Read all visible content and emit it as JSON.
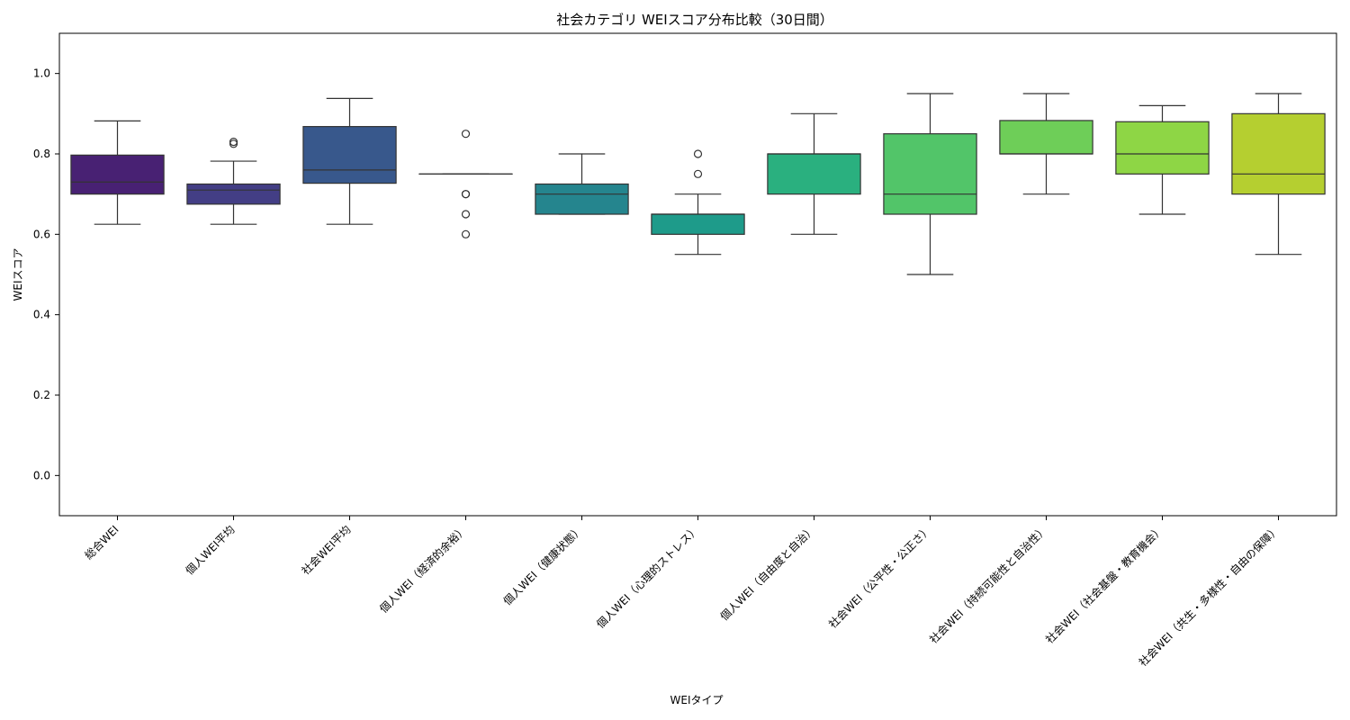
{
  "chart_data": {
    "type": "box",
    "title": "社会カテゴリ WEIスコア分布比較（30日間）",
    "xlabel": "WEIタイプ",
    "ylabel": "WEIスコア",
    "ylim": [
      -0.1,
      1.1
    ],
    "yticks": [
      0.0,
      0.2,
      0.4,
      0.6,
      0.8,
      1.0
    ],
    "ytick_labels": [
      "0.0",
      "0.2",
      "0.4",
      "0.6",
      "0.8",
      "1.0"
    ],
    "grid": false,
    "categories": [
      "総合WEI",
      "個人WEI平均",
      "社会WEI平均",
      "個人WEI（経済的余裕）",
      "個人WEI（健康状態）",
      "個人WEI（心理的ストレス）",
      "個人WEI（自由度と自治）",
      "社会WEI（公平性・公正さ）",
      "社会WEI（持続可能性と自治性）",
      "社会WEI（社会基盤・教育機会）",
      "社会WEI（共生・多様性・自由の保障）"
    ],
    "boxes": [
      {
        "whisker_low": 0.625,
        "q1": 0.7,
        "median": 0.73,
        "q3": 0.797,
        "whisker_high": 0.882,
        "outliers": [],
        "color": "#482173"
      },
      {
        "whisker_low": 0.625,
        "q1": 0.675,
        "median": 0.71,
        "q3": 0.725,
        "whisker_high": 0.782,
        "outliers": [
          0.825,
          0.83
        ],
        "color": "#433e85"
      },
      {
        "whisker_low": 0.625,
        "q1": 0.727,
        "median": 0.76,
        "q3": 0.868,
        "whisker_high": 0.938,
        "outliers": [],
        "color": "#38588c"
      },
      {
        "whisker_low": 0.75,
        "q1": 0.75,
        "median": 0.75,
        "q3": 0.75,
        "whisker_high": 0.75,
        "outliers": [
          0.85,
          0.7,
          0.7,
          0.65,
          0.6
        ],
        "color": "#2d708e"
      },
      {
        "whisker_low": 0.65,
        "q1": 0.65,
        "median": 0.7,
        "q3": 0.725,
        "whisker_high": 0.8,
        "outliers": [],
        "color": "#25858e"
      },
      {
        "whisker_low": 0.55,
        "q1": 0.6,
        "median": 0.65,
        "q3": 0.65,
        "whisker_high": 0.7,
        "outliers": [
          0.75,
          0.8
        ],
        "color": "#1e9b8a"
      },
      {
        "whisker_low": 0.6,
        "q1": 0.7,
        "median": 0.8,
        "q3": 0.8,
        "whisker_high": 0.9,
        "outliers": [],
        "color": "#2ab07f"
      },
      {
        "whisker_low": 0.5,
        "q1": 0.65,
        "median": 0.7,
        "q3": 0.85,
        "whisker_high": 0.95,
        "outliers": [],
        "color": "#52c569"
      },
      {
        "whisker_low": 0.7,
        "q1": 0.8,
        "median": 0.8,
        "q3": 0.883,
        "whisker_high": 0.95,
        "outliers": [],
        "color": "#6ece58"
      },
      {
        "whisker_low": 0.65,
        "q1": 0.75,
        "median": 0.8,
        "q3": 0.88,
        "whisker_high": 0.92,
        "outliers": [],
        "color": "#8ed645"
      },
      {
        "whisker_low": 0.55,
        "q1": 0.7,
        "median": 0.75,
        "q3": 0.9,
        "whisker_high": 0.95,
        "outliers": [],
        "color": "#b5cf30"
      }
    ]
  }
}
